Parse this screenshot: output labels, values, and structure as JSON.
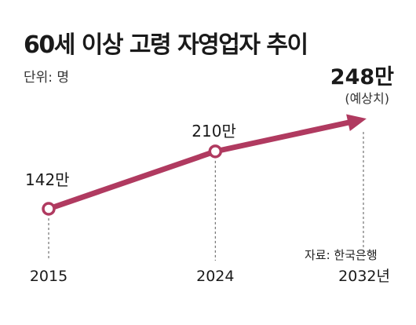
{
  "header": {
    "title": "60세 이상 고령 자영업자 추이",
    "unit": "단위: 명"
  },
  "source": "자료: 한국은행",
  "chart_data": {
    "type": "line",
    "title": "60세 이상 고령 자영업자 추이",
    "unit_label": "단위: 명",
    "x": [
      2015,
      2024,
      2032
    ],
    "tick_labels": [
      "2015",
      "2024",
      "2032년"
    ],
    "values": [
      142,
      210,
      248
    ],
    "value_labels": [
      "142만",
      "210만",
      "248만"
    ],
    "note": "(예상치)",
    "source": "자료: 한국은행",
    "line_color": "#b03a60",
    "highlight_color": "#b03a60",
    "grid": false,
    "legend": "none"
  }
}
